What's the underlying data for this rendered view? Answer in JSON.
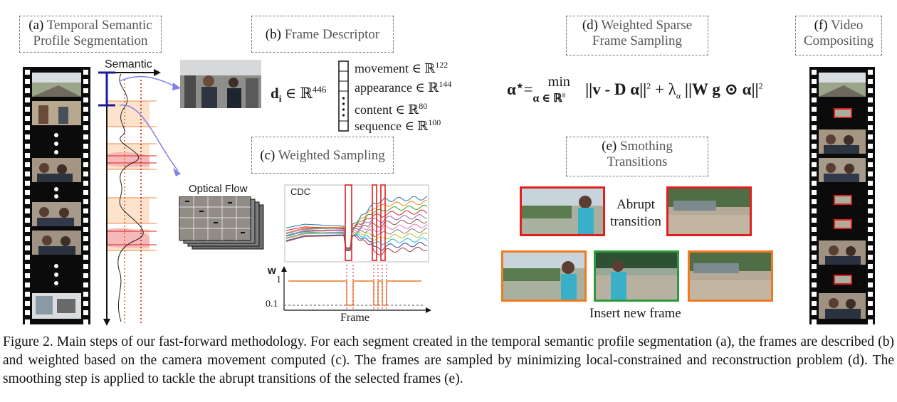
{
  "labels": {
    "a_tag": "(a)",
    "a_text_1": "Temporal Semantic",
    "a_text_2": "Profile Segmentation",
    "b_tag": "(b)",
    "b_text": "Frame Descriptor",
    "c_tag": "(c)",
    "c_text": "Weighted Sampling",
    "d_tag": "(d)",
    "d_text_1": "Weighted Sparse",
    "d_text_2": "Frame Sampling",
    "e_tag": "(e)",
    "e_text_1": "Smothing",
    "e_text_2": "Transitions",
    "f_tag": "(f)",
    "f_text_1": "Video",
    "f_text_2": "Compositing"
  },
  "semantic_axis_label": "Semantic",
  "descriptor": {
    "lhs": "d",
    "lhs_sub": "i",
    "lhs_set": " ∈ ℝ",
    "lhs_dim": "446",
    "rows": [
      {
        "name": "movement ∈ ℝ",
        "dim": "122"
      },
      {
        "name": "appearance ∈ ℝ",
        "dim": "144"
      },
      {
        "name": "content ∈ ℝ",
        "dim": "80"
      },
      {
        "name": "sequence ∈ ℝ",
        "dim": "100"
      }
    ]
  },
  "optical_flow_label": "Optical Flow",
  "cdc_label": "CDC",
  "weights_plot": {
    "y_label": "w",
    "tick_high": "1",
    "tick_low": "0.1",
    "x_label": "Frame"
  },
  "equation": {
    "alpha_star": "α",
    "star": "★",
    "equals": "=",
    "min": "min",
    "min_sub": "α ∈ ℝ",
    "min_sub_sup": "n",
    "norm1": "||v - D α||",
    "sq1": "2",
    "plus": " + λ",
    "lambda_sub": "α",
    "norm2": "||W g ⊙ α||",
    "sq2": "2"
  },
  "abrupt_label_1": "Abrupt",
  "abrupt_label_2": "transition",
  "insert_label": "Insert new frame",
  "caption": "Figure 2. Main steps of our fast-forward methodology. For each segment created in the temporal semantic profile segmentation (a), the frames are described (b) and weighted based on the camera movement computed (c). The frames are sampled by minimizing local-constrained and reconstruction problem (d). The smoothing step is applied to tackle the abrupt transitions of the selected frames (e).",
  "colors": {
    "red_frame": "#e02020",
    "orange_frame": "#f07a20",
    "green_frame": "#2e9a3a",
    "accent_blue": "#1a1aa0",
    "arrow_blue": "#8080e8",
    "segment_fill": "#fde3cc",
    "peak_fill": "#f6b8b8"
  }
}
